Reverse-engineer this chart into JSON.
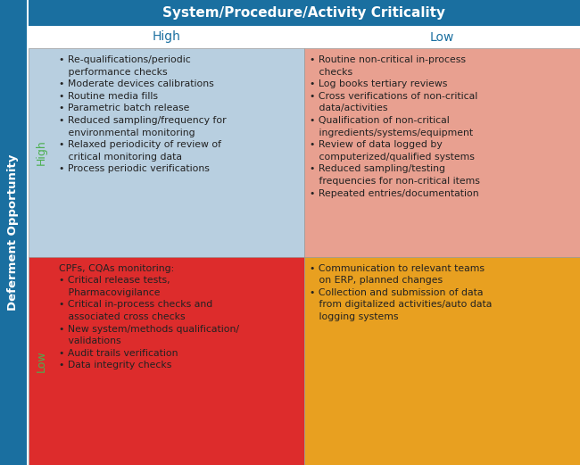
{
  "title": "System/Procedure/Activity Criticality",
  "title_bg": "#1a6fa0",
  "title_color": "#ffffff",
  "col_header_color": "#1a6fa0",
  "row_header_color": "#4caf50",
  "col_labels": [
    "High",
    "Low"
  ],
  "row_labels": [
    "High",
    "Low"
  ],
  "y_axis_label": "Deferment Opportunity",
  "cell_colors": {
    "00": "#b8cfe0",
    "01": "#e8a090",
    "10": "#dd2c2c",
    "11": "#e8a020"
  },
  "cell_text_color": "#222222",
  "cell10_text_color": "#ffffff",
  "sidebar_color": "#1a6fa0",
  "background_color": "#ffffff",
  "cells": {
    "00": "• Re-qualifications/periodic\n   performance checks\n• Moderate devices calibrations\n• Routine media fills\n• Parametric batch release\n• Reduced sampling/frequency for\n   environmental monitoring\n• Relaxed periodicity of review of\n   critical monitoring data\n• Process periodic verifications",
    "01": "• Routine non-critical in-process\n   checks\n• Log books tertiary reviews\n• Cross verifications of non-critical\n   data/activities\n• Qualification of non-critical\n   ingredients/systems/equipment\n• Review of data logged by\n   computerized/qualified systems\n• Reduced sampling/testing\n   frequencies for non-critical items\n• Repeated entries/documentation",
    "10": "CPFs, CQAs monitoring:\n• Critical release tests,\n   Pharmacovigilance\n• Critical in-process checks and\n   associated cross checks\n• New system/methods qualification/\n   validations\n• Audit trails verification\n• Data integrity checks",
    "11": "• Communication to relevant teams\n   on ERP, planned changes\n• Collection and submission of data\n   from digitalized activities/auto data\n   logging systems"
  },
  "title_fontsize": 11,
  "col_label_fontsize": 10,
  "row_label_fontsize": 9,
  "cell_fontsize": 7.8,
  "sidebar_fontsize": 9.5
}
